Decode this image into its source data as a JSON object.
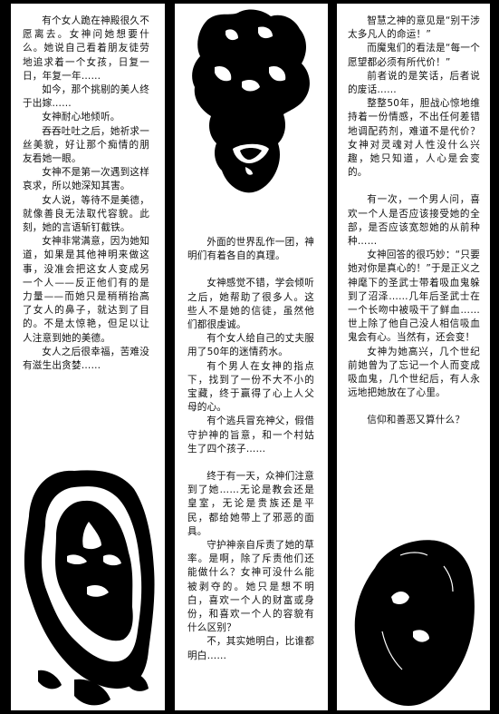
{
  "panels": [
    {
      "paragraphs": [
        "有个女人跪在神殿很久不愿离去。女神问她想要什么。她说自己看着朋友徒劳地追求着一个女孩，日复一日，年复一年……",
        "如今，那个挑剔的美人终于出嫁……",
        "女神耐心地倾听。",
        "吞吞吐吐之后，她祈求一丝美貌，好让那个痴情的朋友看她一眼。",
        "女神不是第一次遇到这样哀求，所以她深知其害。",
        "女人说，等待不是美德，就像善良无法取代容貌。此刻，她的言语斩钉截铁。",
        "女神非常满意，因为她知道，如果是其他神明来做这事，没准会把这女人变成另一个人——反正他们有的是力量——而她只是稍稍抬高了女人的鼻子，就达到了目的。不是太惊艳，但足以让人注意到她的美德。",
        "女人之后很幸福，苦难没有滋生出贪婪……"
      ]
    },
    {
      "paragraphs": [
        "外面的世界乱作一团，神明们有着各自的真理。",
        "女神感觉不错，学会倾听之后，她帮助了很多人。这些人不是她的信徒，虽然他们都很虔诚。",
        "有个女人给自己的丈夫服用了50年的迷情药水。",
        "有个男人在女神的指点下，找到了一份不大不小的宝藏，终于赢得了心上人父母的心。",
        "有个逃兵冒充神父，假借守护神的旨意，和一个村姑生了四个孩子……",
        "终于有一天，众神们注意到了她……无论是教会还是皇室，无论是贵族还是平民，都给她带上了邪恶的面具。",
        "守护神亲自斥责了她的草率。是啊，除了斥责他们还能做什么？女神可没什么能被剥夺的。她只是想不明白，喜欢一个人的财富或身份，和喜欢一个人的容貌有什么区别？",
        "不，其实她明白，比谁都明白……"
      ]
    },
    {
      "paragraphs": [
        "智慧之神的意见是“别干涉太多凡人的命运！”",
        "而魔鬼们的看法是“每一个愿望都必须有所代价！”",
        "前者说的是笑话，后者说的废话……",
        "整整50年，胆战心惊地维持着一份情感，不出任何差错地调配药剂，难道不是代价？女神对灵魂对人性没什么兴趣，她只知道，人心是会变的。",
        "有一次，一个男人问，喜欢一个人是否应该接受她的全部，是否应该宽恕她的从前种种……",
        "女神回答的很巧妙：“只要她对你是真心的！”于是正义之神麾下的圣武士带着吸血鬼躲到了沼泽……几年后圣武士在一个长吻中被吸干了鲜血……世上除了他自己没人相信吸血鬼会有心。当然有，还会变！",
        "女神为她高兴，几个世纪前她曾为了忘记一个人而变成吸血鬼，几个世纪后，有人永远地把她放在了心里。",
        "信仰和善恶又算什么？"
      ]
    }
  ]
}
